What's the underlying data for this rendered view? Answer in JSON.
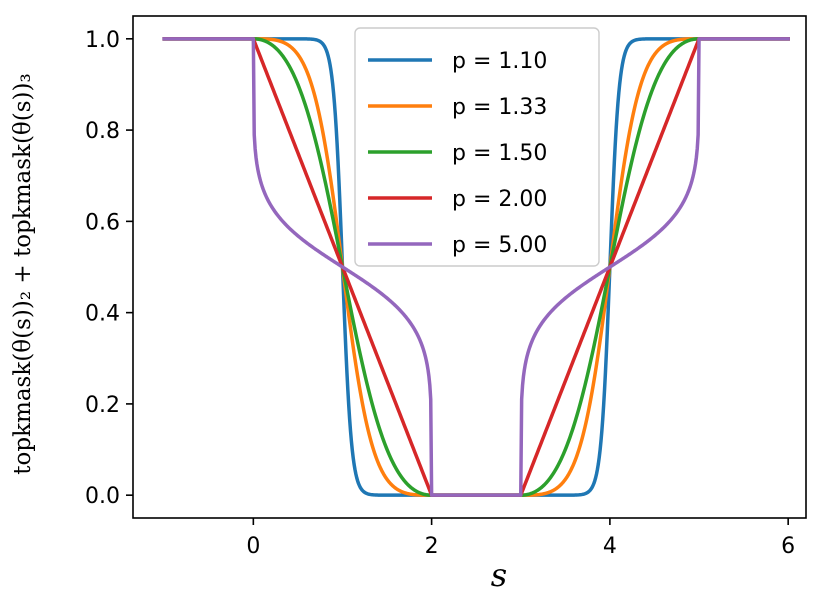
{
  "chart_data": {
    "type": "line",
    "xlabel": "s",
    "ylabel": "topkmask(θ(s))₂ + topkmask(θ(s))₃",
    "xlim": [
      -1.35,
      6.2
    ],
    "ylim": [
      -0.05,
      1.05
    ],
    "x_ticks": [
      0,
      2,
      4,
      6
    ],
    "x_tick_labels": [
      "0",
      "2",
      "4",
      "6"
    ],
    "y_ticks": [
      0.0,
      0.2,
      0.4,
      0.6,
      0.8,
      1.0
    ],
    "y_tick_labels": [
      "0.0",
      "0.2",
      "0.4",
      "0.6",
      "0.8",
      "1.0"
    ],
    "grid": false,
    "legend_position": "top-center",
    "x_range": [
      -1,
      6
    ],
    "series": [
      {
        "name": "p = 1.10",
        "p": 1.1,
        "color": "#1f77b4"
      },
      {
        "name": "p = 1.33",
        "p": 1.33,
        "color": "#ff7f0e"
      },
      {
        "name": "p = 1.50",
        "p": 1.5,
        "color": "#2ca02c"
      },
      {
        "name": "p = 2.00",
        "p": 2.0,
        "color": "#d62728"
      },
      {
        "name": "p = 5.00",
        "p": 5.0,
        "color": "#9467bd"
      }
    ]
  }
}
